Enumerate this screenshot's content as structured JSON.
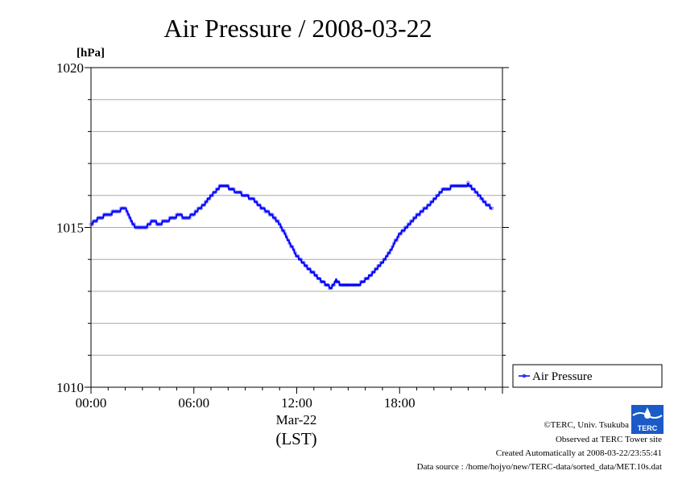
{
  "chart_data": {
    "type": "line",
    "title": "Air Pressure / 2008-03-22",
    "ylabel": "[hPa]",
    "xlabel": "(LST)",
    "x_date_label": "Mar-22",
    "ylim": [
      1010,
      1020
    ],
    "xlim": [
      0,
      24
    ],
    "y_ticks": [
      "1010",
      "1015",
      "1020"
    ],
    "x_ticks": [
      "00:00",
      "06:00",
      "12:00",
      "18:00"
    ],
    "x_tick_hours": [
      0,
      6,
      12,
      18
    ],
    "grid": true,
    "legend_position": "right",
    "series": [
      {
        "name": "Air Pressure",
        "color": "#0000ff",
        "x": [
          0.0,
          0.5,
          1.0,
          1.5,
          2.0,
          2.3,
          2.6,
          3.0,
          3.3,
          3.6,
          4.0,
          4.3,
          4.6,
          5.0,
          5.3,
          5.6,
          6.0,
          6.3,
          6.6,
          7.0,
          7.5,
          8.0,
          8.5,
          9.0,
          9.5,
          10.0,
          10.5,
          11.0,
          11.5,
          12.0,
          12.5,
          13.0,
          13.5,
          14.0,
          14.3,
          14.6,
          15.0,
          15.5,
          16.0,
          16.5,
          17.0,
          17.5,
          18.0,
          18.5,
          19.0,
          19.5,
          20.0,
          20.5,
          21.0,
          21.5,
          22.0,
          22.5,
          23.0,
          23.4
        ],
        "y": [
          1015.1,
          1015.3,
          1015.4,
          1015.5,
          1015.6,
          1015.25,
          1015.0,
          1014.95,
          1015.05,
          1015.2,
          1015.1,
          1015.2,
          1015.25,
          1015.35,
          1015.35,
          1015.3,
          1015.4,
          1015.6,
          1015.7,
          1016.0,
          1016.25,
          1016.25,
          1016.1,
          1016.0,
          1015.85,
          1015.6,
          1015.4,
          1015.1,
          1014.6,
          1014.1,
          1013.8,
          1013.55,
          1013.3,
          1013.1,
          1013.35,
          1013.2,
          1013.15,
          1013.15,
          1013.35,
          1013.6,
          1013.9,
          1014.3,
          1014.8,
          1015.05,
          1015.35,
          1015.6,
          1015.85,
          1016.15,
          1016.25,
          1016.25,
          1016.35,
          1016.1,
          1015.75,
          1015.6
        ]
      }
    ]
  },
  "footer": {
    "copyright": "©TERC, Univ. Tsukuba",
    "observed": "Observed at TERC Tower site",
    "created": "Created Automatically at 2008-03-22/23:55:41",
    "source": "Data source : /home/hojyo/new/TERC-data/sorted_data/MET.10s.dat",
    "logo_text": "TERC"
  }
}
